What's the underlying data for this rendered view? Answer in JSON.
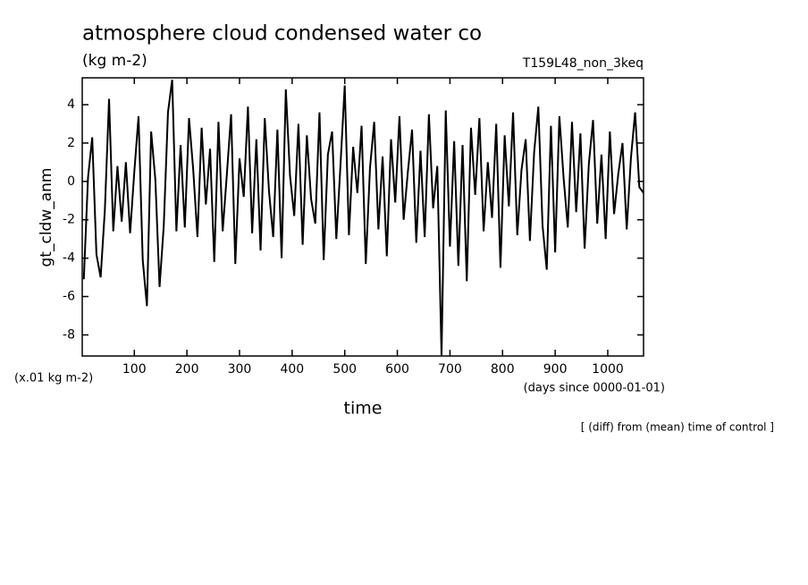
{
  "chart_data": {
    "type": "line",
    "title": "atmosphere cloud condensed water co",
    "subtitle": "(kg m-2)",
    "run_label": "T159L48_non_3keq",
    "y_label": "gt_cldw_anm",
    "y_unit": "(x.01 kg m-2)",
    "x_label": "time",
    "x_unit": "(days since 0000-01-01)",
    "note": "[ (diff) from (mean) time of control ]",
    "xlim": [
      1,
      1068
    ],
    "ylim": [
      -9.1,
      5.4
    ],
    "xticks": [
      100,
      200,
      300,
      400,
      500,
      600,
      700,
      800,
      900,
      1000
    ],
    "yticks": [
      -8,
      -6,
      -4,
      -2,
      0,
      2,
      4
    ],
    "x": [
      4,
      12,
      20,
      28,
      36,
      44,
      52,
      60,
      68,
      76,
      84,
      92,
      100,
      108,
      116,
      124,
      132,
      140,
      148,
      156,
      164,
      172,
      180,
      188,
      196,
      204,
      212,
      220,
      228,
      236,
      244,
      252,
      260,
      268,
      276,
      284,
      292,
      300,
      308,
      316,
      324,
      332,
      340,
      348,
      356,
      364,
      372,
      380,
      388,
      396,
      404,
      412,
      420,
      428,
      436,
      444,
      452,
      460,
      468,
      476,
      484,
      492,
      500,
      508,
      516,
      524,
      532,
      540,
      548,
      556,
      564,
      572,
      580,
      588,
      596,
      604,
      612,
      620,
      628,
      636,
      644,
      652,
      660,
      668,
      676,
      684,
      692,
      700,
      708,
      716,
      724,
      732,
      740,
      748,
      756,
      764,
      772,
      780,
      788,
      796,
      804,
      812,
      820,
      828,
      836,
      844,
      852,
      860,
      868,
      876,
      884,
      892,
      900,
      908,
      916,
      924,
      932,
      940,
      948,
      956,
      964,
      972,
      980,
      988,
      996,
      1004,
      1012,
      1020,
      1028,
      1036,
      1044,
      1052,
      1060,
      1068
    ],
    "series": [
      {
        "color": "#000000",
        "values": [
          -5.1,
          0.2,
          2.3,
          -3.8,
          -5.0,
          -1.5,
          4.3,
          -2.6,
          0.8,
          -2.1,
          1.0,
          -2.7,
          0.5,
          3.4,
          -4.1,
          -6.5,
          2.6,
          0.1,
          -5.5,
          -2.3,
          3.6,
          5.3,
          -2.6,
          1.9,
          -2.4,
          3.3,
          0.6,
          -2.9,
          2.8,
          -1.2,
          1.7,
          -4.2,
          3.1,
          -2.6,
          0.4,
          3.5,
          -4.3,
          1.2,
          -0.8,
          3.9,
          -2.7,
          2.2,
          -3.6,
          3.3,
          -0.5,
          -2.9,
          2.7,
          -4.0,
          4.8,
          0.3,
          -1.8,
          3.0,
          -3.3,
          2.4,
          -0.9,
          -2.2,
          3.6,
          -4.1,
          1.4,
          2.6,
          -3.0,
          0.9,
          5.0,
          -2.8,
          1.8,
          -0.6,
          2.9,
          -4.3,
          0.7,
          3.1,
          -2.5,
          1.3,
          -3.9,
          2.2,
          -1.1,
          3.4,
          -2.0,
          0.5,
          2.7,
          -3.2,
          1.6,
          -2.9,
          3.5,
          -1.4,
          0.8,
          -9.1,
          3.7,
          -3.4,
          2.1,
          -4.4,
          1.9,
          -5.2,
          2.8,
          -0.7,
          3.3,
          -2.6,
          1.0,
          -1.9,
          3.0,
          -4.5,
          2.4,
          -1.3,
          3.6,
          -2.8,
          0.6,
          2.2,
          -3.1,
          1.5,
          3.9,
          -2.3,
          -4.6,
          2.9,
          -3.7,
          3.4,
          0.2,
          -2.4,
          3.1,
          -1.6,
          2.5,
          -3.5,
          0.9,
          3.2,
          -2.2,
          1.4,
          -3.0,
          2.6,
          -1.7,
          0.4,
          2.0,
          -2.5,
          1.2,
          3.6,
          -0.3,
          -0.6
        ]
      }
    ]
  }
}
